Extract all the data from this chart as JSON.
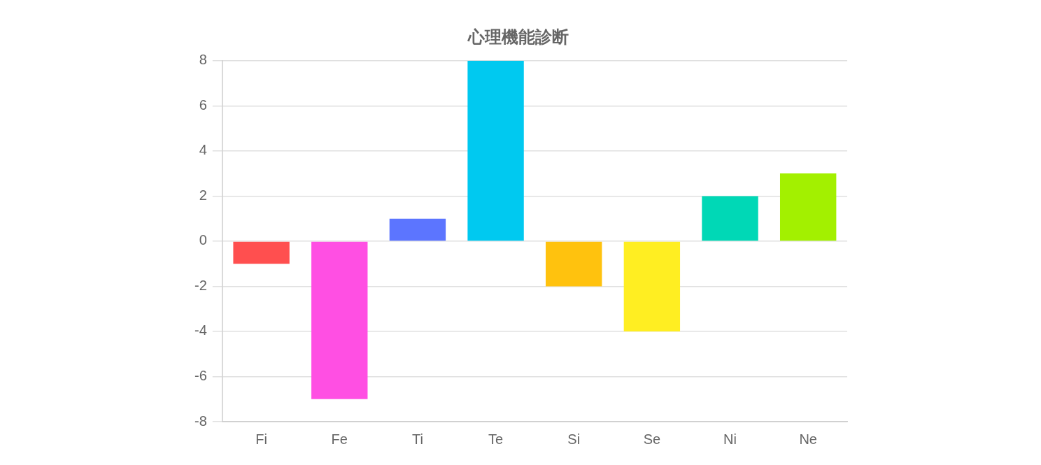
{
  "chart_data": {
    "type": "bar",
    "title": "心理機能診断",
    "categories": [
      "Fi",
      "Fe",
      "Ti",
      "Te",
      "Si",
      "Se",
      "Ni",
      "Ne"
    ],
    "values": [
      -1,
      -7,
      1,
      8,
      -2,
      -4,
      2,
      3
    ],
    "colors": [
      "#ff4f4f",
      "#ff4fe3",
      "#5c75ff",
      "#00c9f0",
      "#ffc20e",
      "#ffee22",
      "#00d8b6",
      "#a3f000"
    ],
    "ylim": [
      -8,
      8
    ],
    "yticks": [
      -8,
      -6,
      -4,
      -2,
      0,
      2,
      4,
      6,
      8
    ],
    "grid": "y",
    "legend": false
  }
}
